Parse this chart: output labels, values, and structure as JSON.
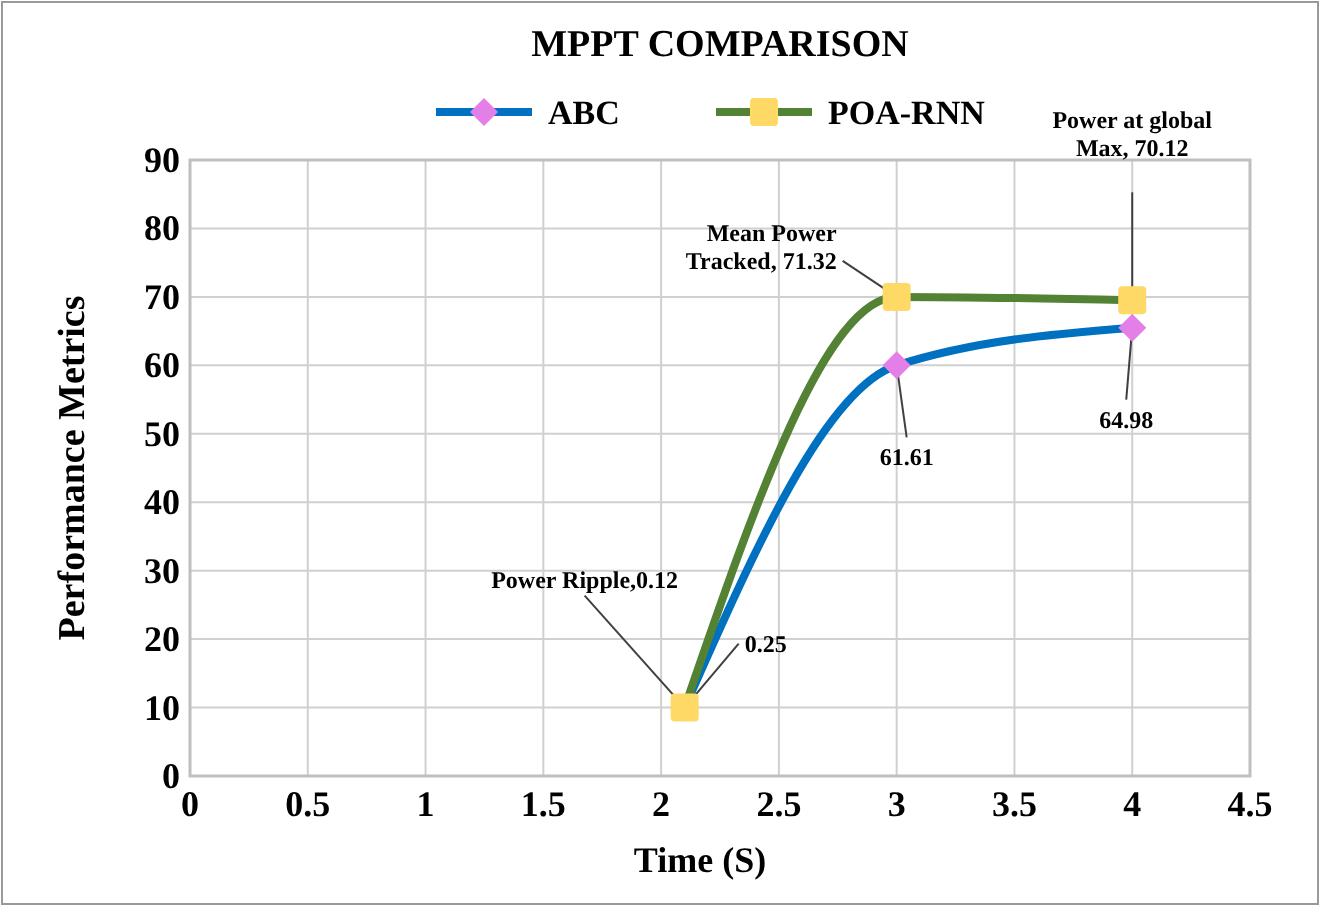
{
  "chart_data": {
    "type": "line",
    "title": "MPPT COMPARISON",
    "xlabel": "Time (S)",
    "ylabel": "Performance Metrics",
    "x": [
      2.1,
      3,
      4
    ],
    "series": [
      {
        "name": "ABC",
        "color": "#0070c0",
        "marker": "diamond",
        "colors": [
          "#e47fe8",
          "#e47fe8",
          "#e47fe8"
        ],
        "values": [
          10,
          60,
          65.5
        ]
      },
      {
        "name": "POA-RNN",
        "color": "#548235",
        "marker": "square",
        "colors": [
          "#ffd966",
          "#ffd966",
          "#ffd966"
        ],
        "values": [
          10,
          70,
          69.5
        ]
      }
    ],
    "xlim": [
      0,
      4.5
    ],
    "xticks": [
      0,
      0.5,
      1,
      1.5,
      2,
      2.5,
      3,
      3.5,
      4,
      4.5
    ],
    "ylim": [
      0,
      90
    ],
    "yticks": [
      0,
      10,
      20,
      30,
      40,
      50,
      60,
      70,
      80,
      90
    ],
    "grid": true,
    "legend": "top",
    "annotations": [
      {
        "text": "Power Ripple,0.12",
        "x": 2.1,
        "y": 10
      },
      {
        "text": "0.25",
        "x": 2.1,
        "y": 10
      },
      {
        "text": "Mean Power Tracked, 71.32",
        "x": 3,
        "y": 70
      },
      {
        "text": "61.61",
        "x": 3,
        "y": 60
      },
      {
        "text": "Power at global Max, 70.12",
        "x": 4,
        "y": 69.5
      },
      {
        "text": "64.98",
        "x": 4,
        "y": 65.5
      }
    ]
  }
}
